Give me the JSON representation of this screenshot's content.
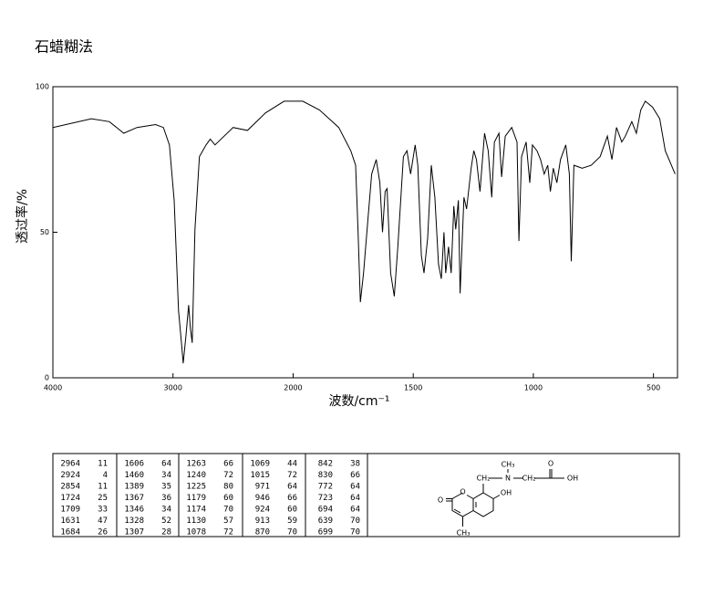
{
  "chart_data": {
    "type": "line",
    "title": "石蜡糊法",
    "ylabel": "透过率/%",
    "xlabel": "波数/cm⁻¹",
    "xlim": [
      4000,
      400
    ],
    "xscale_break": 2000,
    "xticks": [
      4000,
      3000,
      2000,
      1500,
      1000,
      500
    ],
    "ylim": [
      0,
      100
    ],
    "yticks": [
      0,
      50,
      100
    ],
    "color": "#000000",
    "x": [
      4000,
      3680,
      3530,
      3410,
      3300,
      3145,
      3080,
      3030,
      2990,
      2954,
      2930,
      2915,
      2893,
      2870,
      2855,
      2840,
      2817,
      2780,
      2725,
      2690,
      2650,
      2500,
      2380,
      2230,
      2075,
      1960,
      1890,
      1810,
      1760,
      1740,
      1730,
      1720,
      1707,
      1692,
      1673,
      1654,
      1639,
      1628,
      1617,
      1609,
      1594,
      1579,
      1564,
      1541,
      1526,
      1511,
      1492,
      1481,
      1466,
      1455,
      1440,
      1425,
      1410,
      1395,
      1383,
      1372,
      1365,
      1353,
      1342,
      1331,
      1323,
      1312,
      1305,
      1289,
      1278,
      1259,
      1248,
      1237,
      1222,
      1203,
      1188,
      1173,
      1162,
      1143,
      1132,
      1117,
      1090,
      1068,
      1060,
      1049,
      1030,
      1015,
      1004,
      985,
      970,
      955,
      940,
      929,
      917,
      902,
      887,
      865,
      850,
      842,
      831,
      797,
      759,
      722,
      692,
      673,
      654,
      632,
      617,
      590,
      571,
      553,
      534,
      504,
      474,
      451,
      410
    ],
    "values": [
      86,
      89,
      88,
      84,
      86,
      87,
      86,
      80,
      61,
      23,
      12,
      5,
      14,
      25,
      17,
      12,
      51,
      76,
      80,
      82,
      80,
      86,
      85,
      91,
      95,
      95,
      92,
      86,
      78,
      73,
      51,
      26,
      36,
      51,
      70,
      75,
      67,
      50,
      64,
      65,
      36,
      28,
      45,
      76,
      78,
      70,
      80,
      73,
      42,
      36,
      48,
      73,
      62,
      39,
      34,
      50,
      36,
      45,
      36,
      59,
      51,
      61,
      29,
      62,
      58,
      72,
      78,
      75,
      64,
      84,
      78,
      62,
      81,
      84,
      69,
      83,
      86,
      81,
      47,
      76,
      81,
      67,
      80,
      78,
      75,
      70,
      73,
      64,
      72,
      67,
      75,
      80,
      70,
      40,
      73,
      72,
      73,
      76,
      83,
      75,
      86,
      81,
      83,
      88,
      84,
      92,
      95,
      93,
      89,
      78,
      70
    ]
  },
  "peak_table": [
    [
      [
        2964,
        11
      ],
      [
        2924,
        4
      ],
      [
        2854,
        11
      ],
      [
        1724,
        25
      ],
      [
        1709,
        33
      ],
      [
        1631,
        47
      ],
      [
        1684,
        26
      ]
    ],
    [
      [
        1606,
        64
      ],
      [
        1460,
        34
      ],
      [
        1389,
        35
      ],
      [
        1367,
        36
      ],
      [
        1346,
        34
      ],
      [
        1328,
        52
      ],
      [
        1307,
        28
      ]
    ],
    [
      [
        1263,
        66
      ],
      [
        1240,
        72
      ],
      [
        1225,
        80
      ],
      [
        1179,
        60
      ],
      [
        1174,
        70
      ],
      [
        1130,
        57
      ],
      [
        1078,
        72
      ]
    ],
    [
      [
        1069,
        44
      ],
      [
        1015,
        72
      ],
      [
        971,
        64
      ],
      [
        946,
        66
      ],
      [
        924,
        60
      ],
      [
        913,
        59
      ],
      [
        870,
        70
      ]
    ],
    [
      [
        842,
        38
      ],
      [
        830,
        66
      ],
      [
        772,
        64
      ],
      [
        723,
        64
      ],
      [
        694,
        64
      ],
      [
        639,
        70
      ],
      [
        699,
        70
      ]
    ]
  ],
  "structure": {
    "labels": [
      "CH₂",
      "N",
      "CH₃",
      "CH₂",
      "O",
      "OH",
      "OH",
      "O",
      "O",
      "CH₃"
    ]
  }
}
